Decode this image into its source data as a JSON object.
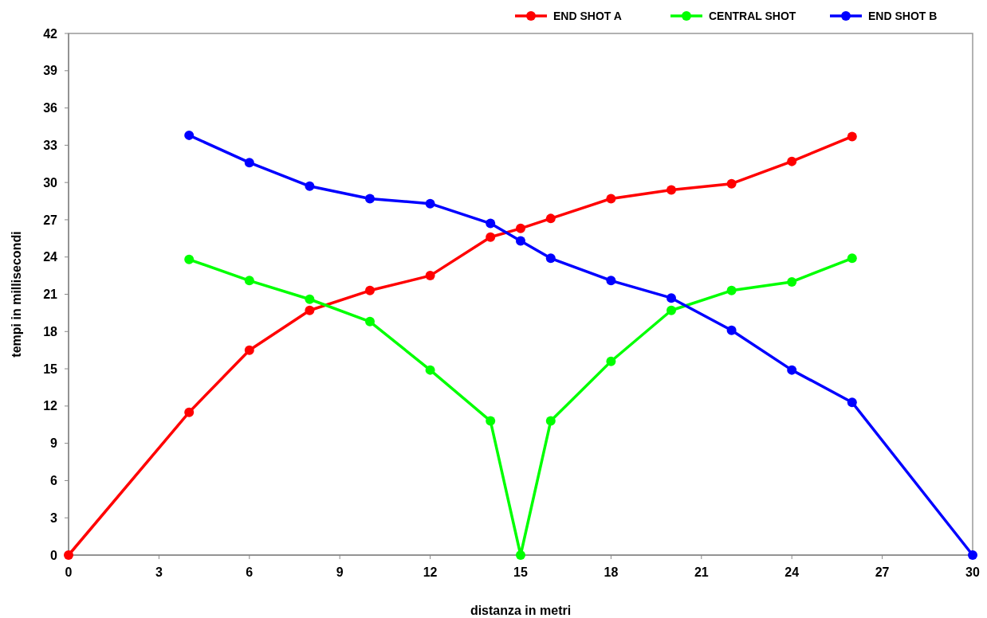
{
  "chart_data": {
    "type": "line",
    "xlabel": "distanza in metri",
    "ylabel": "tempi in millisecondi",
    "xlim": [
      0,
      30
    ],
    "xticks": [
      0,
      3,
      6,
      9,
      12,
      15,
      18,
      21,
      24,
      27,
      30
    ],
    "ylim": [
      0,
      42
    ],
    "yticks": [
      0,
      3,
      6,
      9,
      12,
      15,
      18,
      21,
      24,
      27,
      30,
      33,
      36,
      39,
      42
    ],
    "grid": false,
    "legend": "top right",
    "marker": "circle",
    "line_style": "solid",
    "series": [
      {
        "name": "END SHOT A",
        "color": "#ff0000",
        "x": [
          0,
          4,
          6,
          8,
          10,
          12,
          14,
          15,
          16,
          18,
          20,
          22,
          24,
          26
        ],
        "values": [
          0,
          11.5,
          16.5,
          19.7,
          21.3,
          22.5,
          25.6,
          26.3,
          27.1,
          28.7,
          29.4,
          29.9,
          31.7,
          33.7
        ]
      },
      {
        "name": "CENTRAL SHOT",
        "color": "#00ff00",
        "x": [
          4,
          6,
          8,
          10,
          12,
          14,
          15,
          16,
          18,
          20,
          22,
          24,
          26
        ],
        "values": [
          23.8,
          22.1,
          20.6,
          18.8,
          14.9,
          10.8,
          0,
          10.8,
          15.6,
          19.7,
          21.3,
          22.0,
          23.9
        ]
      },
      {
        "name": "END SHOT B",
        "color": "#0000ff",
        "x": [
          4,
          6,
          8,
          10,
          12,
          14,
          15,
          16,
          18,
          20,
          22,
          24,
          26,
          30
        ],
        "values": [
          33.8,
          31.6,
          29.7,
          28.7,
          28.3,
          26.7,
          25.3,
          23.9,
          22.1,
          20.7,
          18.1,
          14.9,
          12.3,
          0
        ]
      }
    ]
  }
}
